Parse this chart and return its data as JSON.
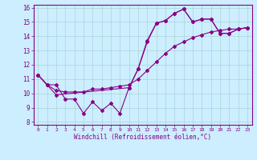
{
  "xlabel": "Windchill (Refroidissement éolien,°C)",
  "bg_color": "#cceeff",
  "line_color": "#880088",
  "marker": "D",
  "markersize": 2,
  "linewidth": 0.8,
  "xlim": [
    -0.5,
    23.5
  ],
  "ylim": [
    7.8,
    16.2
  ],
  "yticks": [
    8,
    9,
    10,
    11,
    12,
    13,
    14,
    15,
    16
  ],
  "xticks": [
    0,
    1,
    2,
    3,
    4,
    5,
    6,
    7,
    8,
    9,
    10,
    11,
    12,
    13,
    14,
    15,
    16,
    17,
    18,
    19,
    20,
    21,
    22,
    23
  ],
  "series": [
    {
      "x": [
        0,
        1,
        2,
        3,
        4,
        5,
        6,
        7,
        8,
        9,
        10,
        11,
        12,
        13,
        14,
        15,
        16,
        17,
        18,
        19,
        20,
        21,
        22,
        23
      ],
      "y": [
        11.3,
        10.6,
        10.6,
        9.6,
        9.6,
        8.6,
        9.4,
        8.8,
        9.3,
        8.6,
        10.4,
        11.7,
        13.6,
        14.9,
        15.1,
        15.6,
        15.9,
        15.0,
        15.2,
        15.2,
        14.2,
        14.2,
        14.5,
        14.6
      ]
    },
    {
      "x": [
        0,
        1,
        2,
        3,
        4,
        5,
        6,
        7,
        8,
        9,
        10,
        11,
        12,
        13,
        14,
        15,
        16,
        17,
        18,
        19,
        20,
        21,
        22,
        23
      ],
      "y": [
        11.3,
        10.6,
        10.2,
        10.1,
        10.1,
        10.1,
        10.3,
        10.3,
        10.4,
        10.5,
        10.6,
        11.0,
        11.6,
        12.2,
        12.8,
        13.3,
        13.6,
        13.9,
        14.1,
        14.3,
        14.4,
        14.5,
        14.5,
        14.6
      ]
    },
    {
      "x": [
        0,
        1,
        2,
        10,
        11,
        12,
        13,
        14,
        15,
        16,
        17,
        18,
        19,
        20,
        21,
        22,
        23
      ],
      "y": [
        11.3,
        10.6,
        9.9,
        10.4,
        11.7,
        13.7,
        14.9,
        15.1,
        15.6,
        15.9,
        15.0,
        15.2,
        15.2,
        14.2,
        14.2,
        14.5,
        14.6
      ]
    }
  ]
}
